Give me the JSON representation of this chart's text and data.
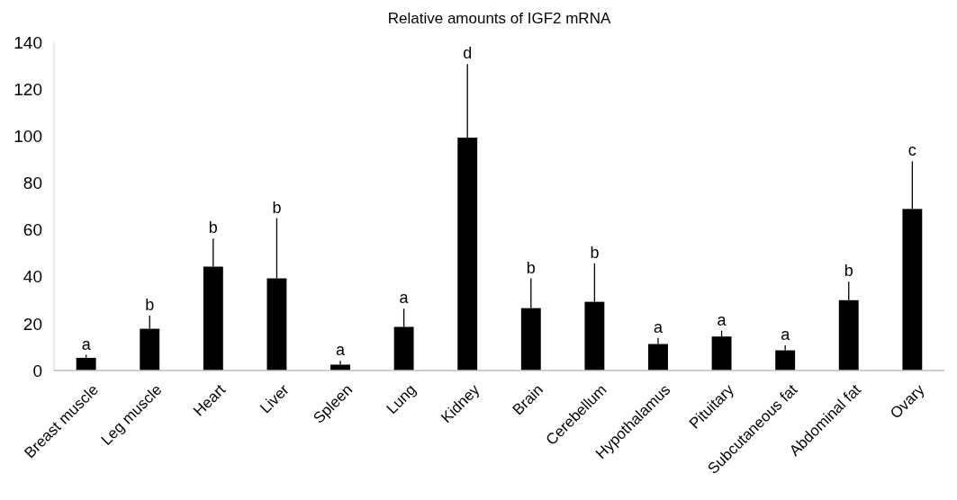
{
  "chart_data": {
    "type": "bar",
    "title": "Relative amounts of IGF2 mRNA",
    "categories": [
      "Breast muscle",
      "Leg muscle",
      "Heart",
      "Liver",
      "Spleen",
      "Lung",
      "Kidney",
      "Brain",
      "Cerebellum",
      "Hypothalamus",
      "Pituitary",
      "Subcutaneous fat",
      "Abdominal fat",
      "Ovary"
    ],
    "values": [
      5.4,
      17.8,
      44.3,
      39.3,
      2.5,
      18.6,
      99.3,
      26.6,
      29.3,
      11.3,
      14.5,
      8.6,
      30,
      68.9
    ],
    "errors": [
      [
        5.4,
        6.7
      ],
      [
        17.8,
        23.4
      ],
      [
        44.3,
        56.3
      ],
      [
        39.3,
        65
      ],
      [
        2.5,
        4.1
      ],
      [
        18.6,
        26.4
      ],
      [
        99.3,
        130.7
      ],
      [
        26.6,
        39.3
      ],
      [
        29.3,
        45.7
      ],
      [
        11.3,
        13.9
      ],
      [
        14.5,
        17
      ],
      [
        8.6,
        10.7
      ],
      [
        30,
        37.9
      ],
      [
        68.9,
        89.2
      ]
    ],
    "color": "#000000",
    "ylim": [
      0,
      140
    ],
    "yticks": [
      0,
      20,
      40,
      60,
      80,
      100,
      120,
      140
    ],
    "grid": false,
    "annotations": [
      "a",
      "b",
      "b",
      "b",
      "a",
      "a",
      "d",
      "b",
      "b",
      "a",
      "a",
      "a",
      "b",
      "c"
    ]
  }
}
